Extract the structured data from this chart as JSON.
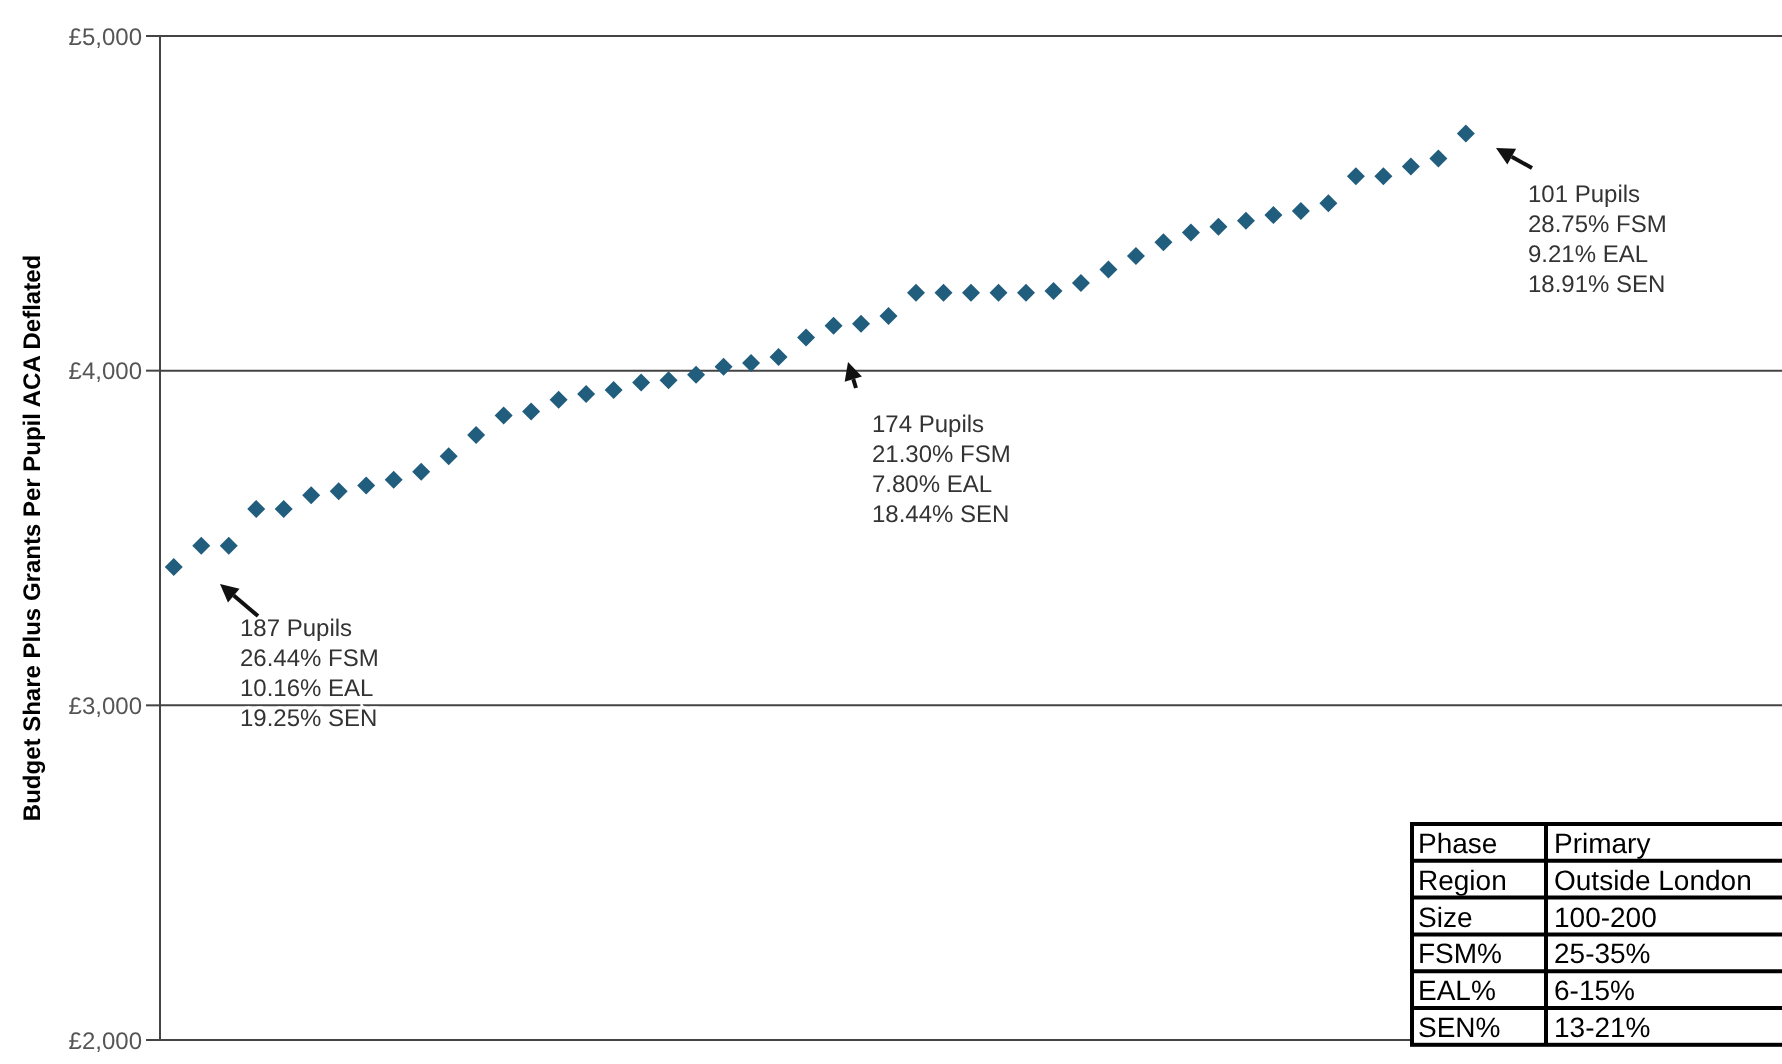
{
  "chart_data": {
    "type": "scatter",
    "ylabel": "Budget Share Plus Grants Per Pupil ACA Deflated",
    "categories": [
      null,
      null,
      null,
      null,
      null,
      null,
      null,
      null,
      null,
      null,
      null,
      null,
      null,
      null,
      null,
      null,
      null,
      null,
      null,
      null,
      null,
      null,
      null,
      null,
      null,
      null,
      null,
      null,
      null,
      null,
      null,
      null,
      null,
      null,
      null,
      null,
      null,
      null,
      null,
      null,
      null,
      null,
      null,
      null,
      null,
      null,
      null,
      null,
      null,
      null,
      null,
      null,
      null,
      null,
      null,
      null,
      null,
      null,
      null
    ],
    "series": [
      {
        "color": "#215d7c",
        "values": [
          3413,
          3477,
          3477,
          3587,
          3587,
          3628,
          3640,
          3657,
          3674,
          3698,
          3744,
          3808,
          3866,
          3878,
          3913,
          3930,
          3942,
          3965,
          3971,
          3988,
          4012,
          4023,
          4041,
          4099,
          4134,
          4140,
          4163,
          4233,
          4233,
          4233,
          4233,
          4233,
          4238,
          4262,
          4302,
          4343,
          4384,
          4413,
          4430,
          4448,
          4465,
          4477,
          4500,
          4581,
          4581,
          4610,
          4634,
          4709,
          null,
          null,
          null,
          null,
          null,
          null,
          null,
          null,
          null,
          null,
          null
        ]
      }
    ],
    "ylim": [
      2000,
      5000
    ],
    "yticks": [
      {
        "value": 2000,
        "label": "£2,000"
      },
      {
        "value": 3000,
        "label": "£3,000"
      },
      {
        "value": 4000,
        "label": "£4,000"
      },
      {
        "value": 5000,
        "label": "£5,000"
      }
    ],
    "grid": "y",
    "marker": "diamond",
    "tick_labels": "y",
    "legend": false,
    "annotations": [
      "187 Pupils\n26.44% FSM\n10.16% EAL\n19.25% SEN",
      "174 Pupils\n21.30% FSM\n7.80% EAL\n18.44% SEN",
      "101 Pupils\n28.75% FSM\n9.21% EAL\n18.91% SEN",
      "Phase",
      "Primary",
      "Region",
      "Outside London",
      "Size",
      "100-200",
      "FSM%",
      "25-35%",
      "EAL%",
      "6-15%",
      "SEN%",
      "13-21%"
    ]
  }
}
